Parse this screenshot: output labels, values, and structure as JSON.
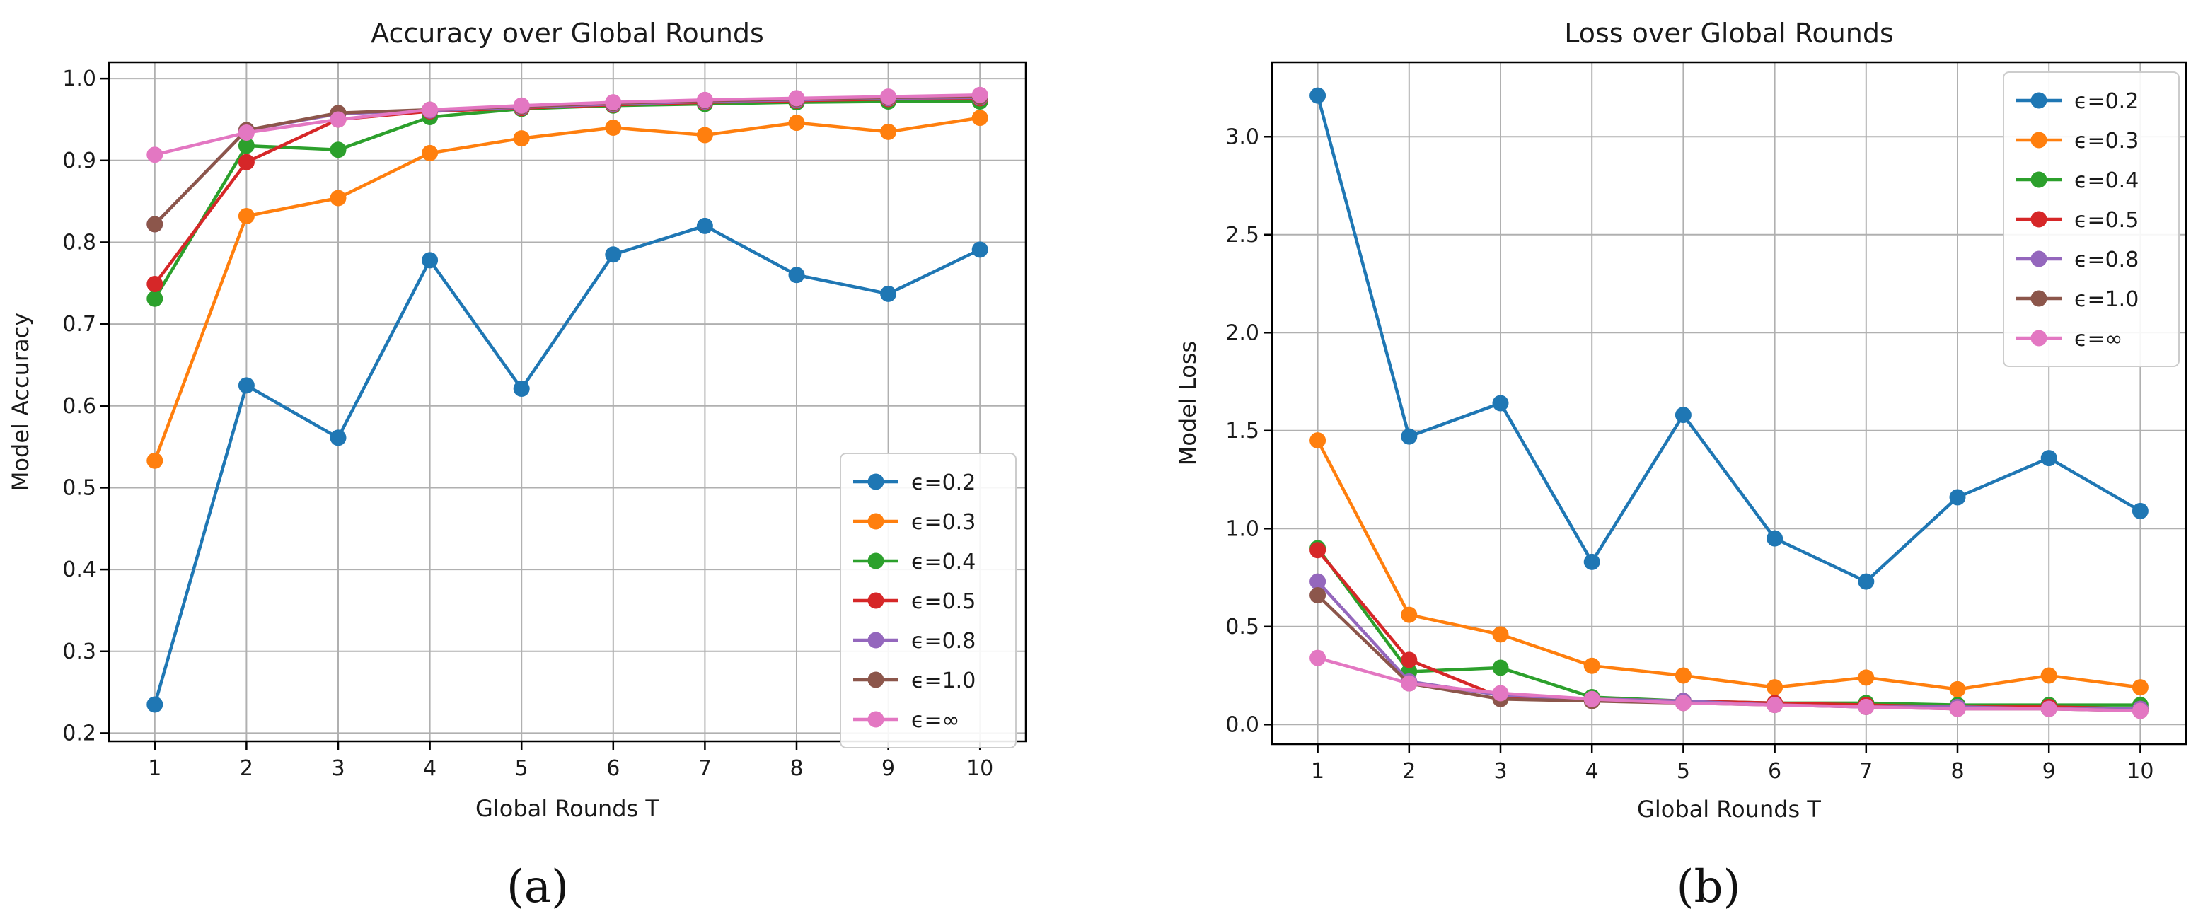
{
  "chart_data": [
    {
      "type": "line",
      "title": "Accuracy over Global Rounds",
      "xlabel": "Global Rounds T",
      "ylabel": "Model Accuracy",
      "xlim": [
        0.5,
        10.5
      ],
      "ylim": [
        0.19,
        1.02
      ],
      "xticks": [
        1,
        2,
        3,
        4,
        5,
        6,
        7,
        8,
        9,
        10
      ],
      "xtick_labels": [
        "1",
        "2",
        "3",
        "4",
        "5",
        "6",
        "7",
        "8",
        "9",
        "10"
      ],
      "yticks": [
        0.2,
        0.3,
        0.4,
        0.5,
        0.6,
        0.7,
        0.8,
        0.9,
        1.0
      ],
      "ytick_labels": [
        "0.2",
        "0.3",
        "0.4",
        "0.5",
        "0.6",
        "0.7",
        "0.8",
        "0.9",
        "1.0"
      ],
      "grid": true,
      "legend_position": "bottom-right",
      "caption": "(a)",
      "x": [
        1,
        2,
        3,
        4,
        5,
        6,
        7,
        8,
        9,
        10
      ],
      "series": [
        {
          "name": "ϵ=0.2",
          "color": "#1f77b4",
          "values": [
            0.235,
            0.625,
            0.561,
            0.778,
            0.621,
            0.785,
            0.82,
            0.76,
            0.737,
            0.791
          ]
        },
        {
          "name": "ϵ=0.3",
          "color": "#ff7f0e",
          "values": [
            0.533,
            0.832,
            0.854,
            0.909,
            0.927,
            0.94,
            0.931,
            0.946,
            0.935,
            0.952
          ]
        },
        {
          "name": "ϵ=0.4",
          "color": "#2ca02c",
          "values": [
            0.731,
            0.918,
            0.913,
            0.953,
            0.963,
            0.967,
            0.969,
            0.971,
            0.972,
            0.972
          ]
        },
        {
          "name": "ϵ=0.5",
          "color": "#d62728",
          "values": [
            0.749,
            0.898,
            0.95,
            0.96,
            0.964,
            0.968,
            0.971,
            0.973,
            0.975,
            0.976
          ]
        },
        {
          "name": "ϵ=0.8",
          "color": "#9467bd",
          "values": [
            0.822,
            0.937,
            0.957,
            0.961,
            0.965,
            0.969,
            0.972,
            0.974,
            0.976,
            0.977
          ]
        },
        {
          "name": "ϵ=1.0",
          "color": "#8c564b",
          "values": [
            0.822,
            0.937,
            0.958,
            0.962,
            0.966,
            0.97,
            0.973,
            0.975,
            0.977,
            0.978
          ]
        },
        {
          "name": "ϵ=∞",
          "color": "#e377c2",
          "values": [
            0.907,
            0.934,
            0.95,
            0.962,
            0.967,
            0.971,
            0.974,
            0.976,
            0.978,
            0.98
          ]
        }
      ]
    },
    {
      "type": "line",
      "title": "Loss over Global Rounds",
      "xlabel": "Global Rounds T",
      "ylabel": "Model Loss",
      "xlim": [
        0.5,
        10.5
      ],
      "ylim": [
        -0.1,
        3.38
      ],
      "xticks": [
        1,
        2,
        3,
        4,
        5,
        6,
        7,
        8,
        9,
        10
      ],
      "xtick_labels": [
        "1",
        "2",
        "3",
        "4",
        "5",
        "6",
        "7",
        "8",
        "9",
        "10"
      ],
      "yticks": [
        0.0,
        0.5,
        1.0,
        1.5,
        2.0,
        2.5,
        3.0
      ],
      "ytick_labels": [
        "0.0",
        "0.5",
        "1.0",
        "1.5",
        "2.0",
        "2.5",
        "3.0"
      ],
      "grid": true,
      "legend_position": "top-right",
      "caption": "(b)",
      "x": [
        1,
        2,
        3,
        4,
        5,
        6,
        7,
        8,
        9,
        10
      ],
      "series": [
        {
          "name": "ϵ=0.2",
          "color": "#1f77b4",
          "values": [
            3.21,
            1.47,
            1.64,
            0.83,
            1.58,
            0.95,
            0.73,
            1.16,
            1.36,
            1.09
          ]
        },
        {
          "name": "ϵ=0.3",
          "color": "#ff7f0e",
          "values": [
            1.45,
            0.56,
            0.46,
            0.3,
            0.25,
            0.19,
            0.24,
            0.18,
            0.25,
            0.19
          ]
        },
        {
          "name": "ϵ=0.4",
          "color": "#2ca02c",
          "values": [
            0.9,
            0.27,
            0.29,
            0.14,
            0.12,
            0.11,
            0.11,
            0.1,
            0.1,
            0.1
          ]
        },
        {
          "name": "ϵ=0.5",
          "color": "#d62728",
          "values": [
            0.89,
            0.33,
            0.14,
            0.13,
            0.12,
            0.11,
            0.1,
            0.09,
            0.09,
            0.08
          ]
        },
        {
          "name": "ϵ=0.8",
          "color": "#9467bd",
          "values": [
            0.73,
            0.22,
            0.15,
            0.13,
            0.12,
            0.1,
            0.09,
            0.09,
            0.08,
            0.08
          ]
        },
        {
          "name": "ϵ=1.0",
          "color": "#8c564b",
          "values": [
            0.66,
            0.21,
            0.13,
            0.12,
            0.11,
            0.1,
            0.09,
            0.08,
            0.08,
            0.07
          ]
        },
        {
          "name": "ϵ=∞",
          "color": "#e377c2",
          "values": [
            0.34,
            0.21,
            0.16,
            0.13,
            0.11,
            0.1,
            0.09,
            0.08,
            0.08,
            0.07
          ]
        }
      ]
    }
  ]
}
